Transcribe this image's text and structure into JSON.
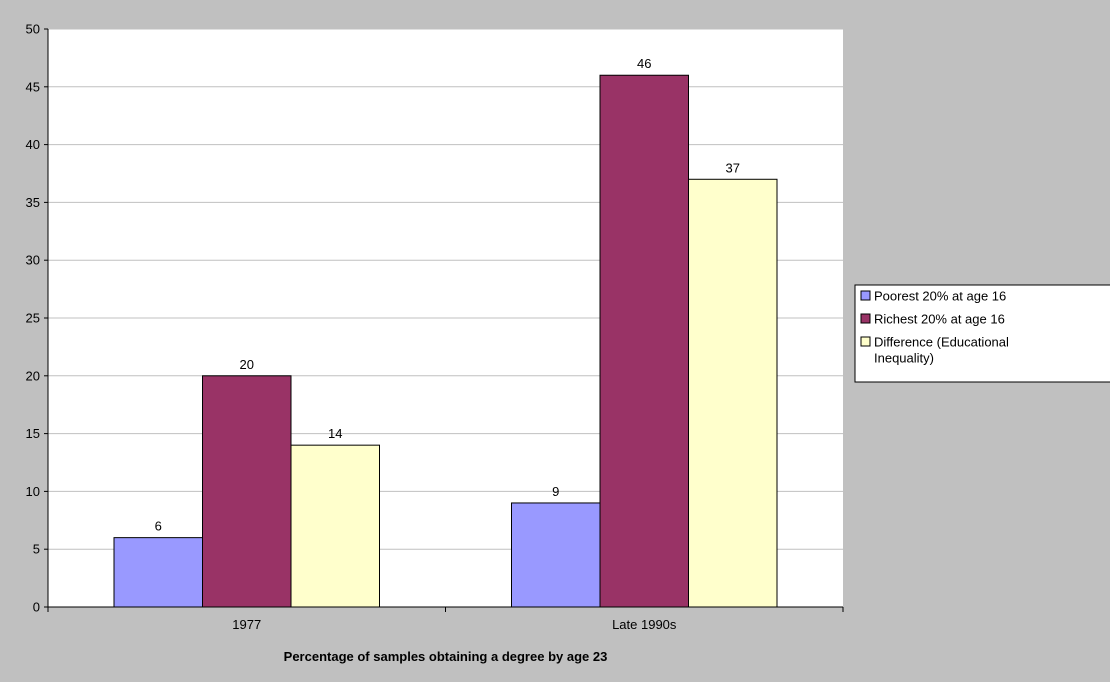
{
  "chart_data": {
    "type": "bar",
    "categories": [
      "1977",
      "Late 1990s"
    ],
    "series": [
      {
        "name": "Poorest 20% at age 16",
        "values": [
          6,
          9
        ],
        "color": "#9999ff"
      },
      {
        "name": "Richest 20% at age 16",
        "values": [
          20,
          46
        ],
        "color": "#993366"
      },
      {
        "name": "Difference (Educational Inequality)",
        "values": [
          14,
          37
        ],
        "color": "#ffffcc"
      }
    ],
    "xlabel": "Percentage of samples obtaining a degree by age 23",
    "ylabel": "",
    "ylim": [
      0,
      50
    ],
    "yticks": [
      0,
      5,
      10,
      15,
      20,
      25,
      30,
      35,
      40,
      45,
      50
    ],
    "data_labels": true,
    "grid": true,
    "legend": {
      "position": "right",
      "entries": [
        [
          "Poorest 20% at age 16"
        ],
        [
          "Richest 20% at age 16"
        ],
        [
          "Difference (Educational",
          "Inequality)"
        ]
      ]
    },
    "colors": {
      "background": "#c0c0c0",
      "plot_area": "#ffffff",
      "gridline": "#c0c0c0",
      "axis": "#000000"
    }
  }
}
